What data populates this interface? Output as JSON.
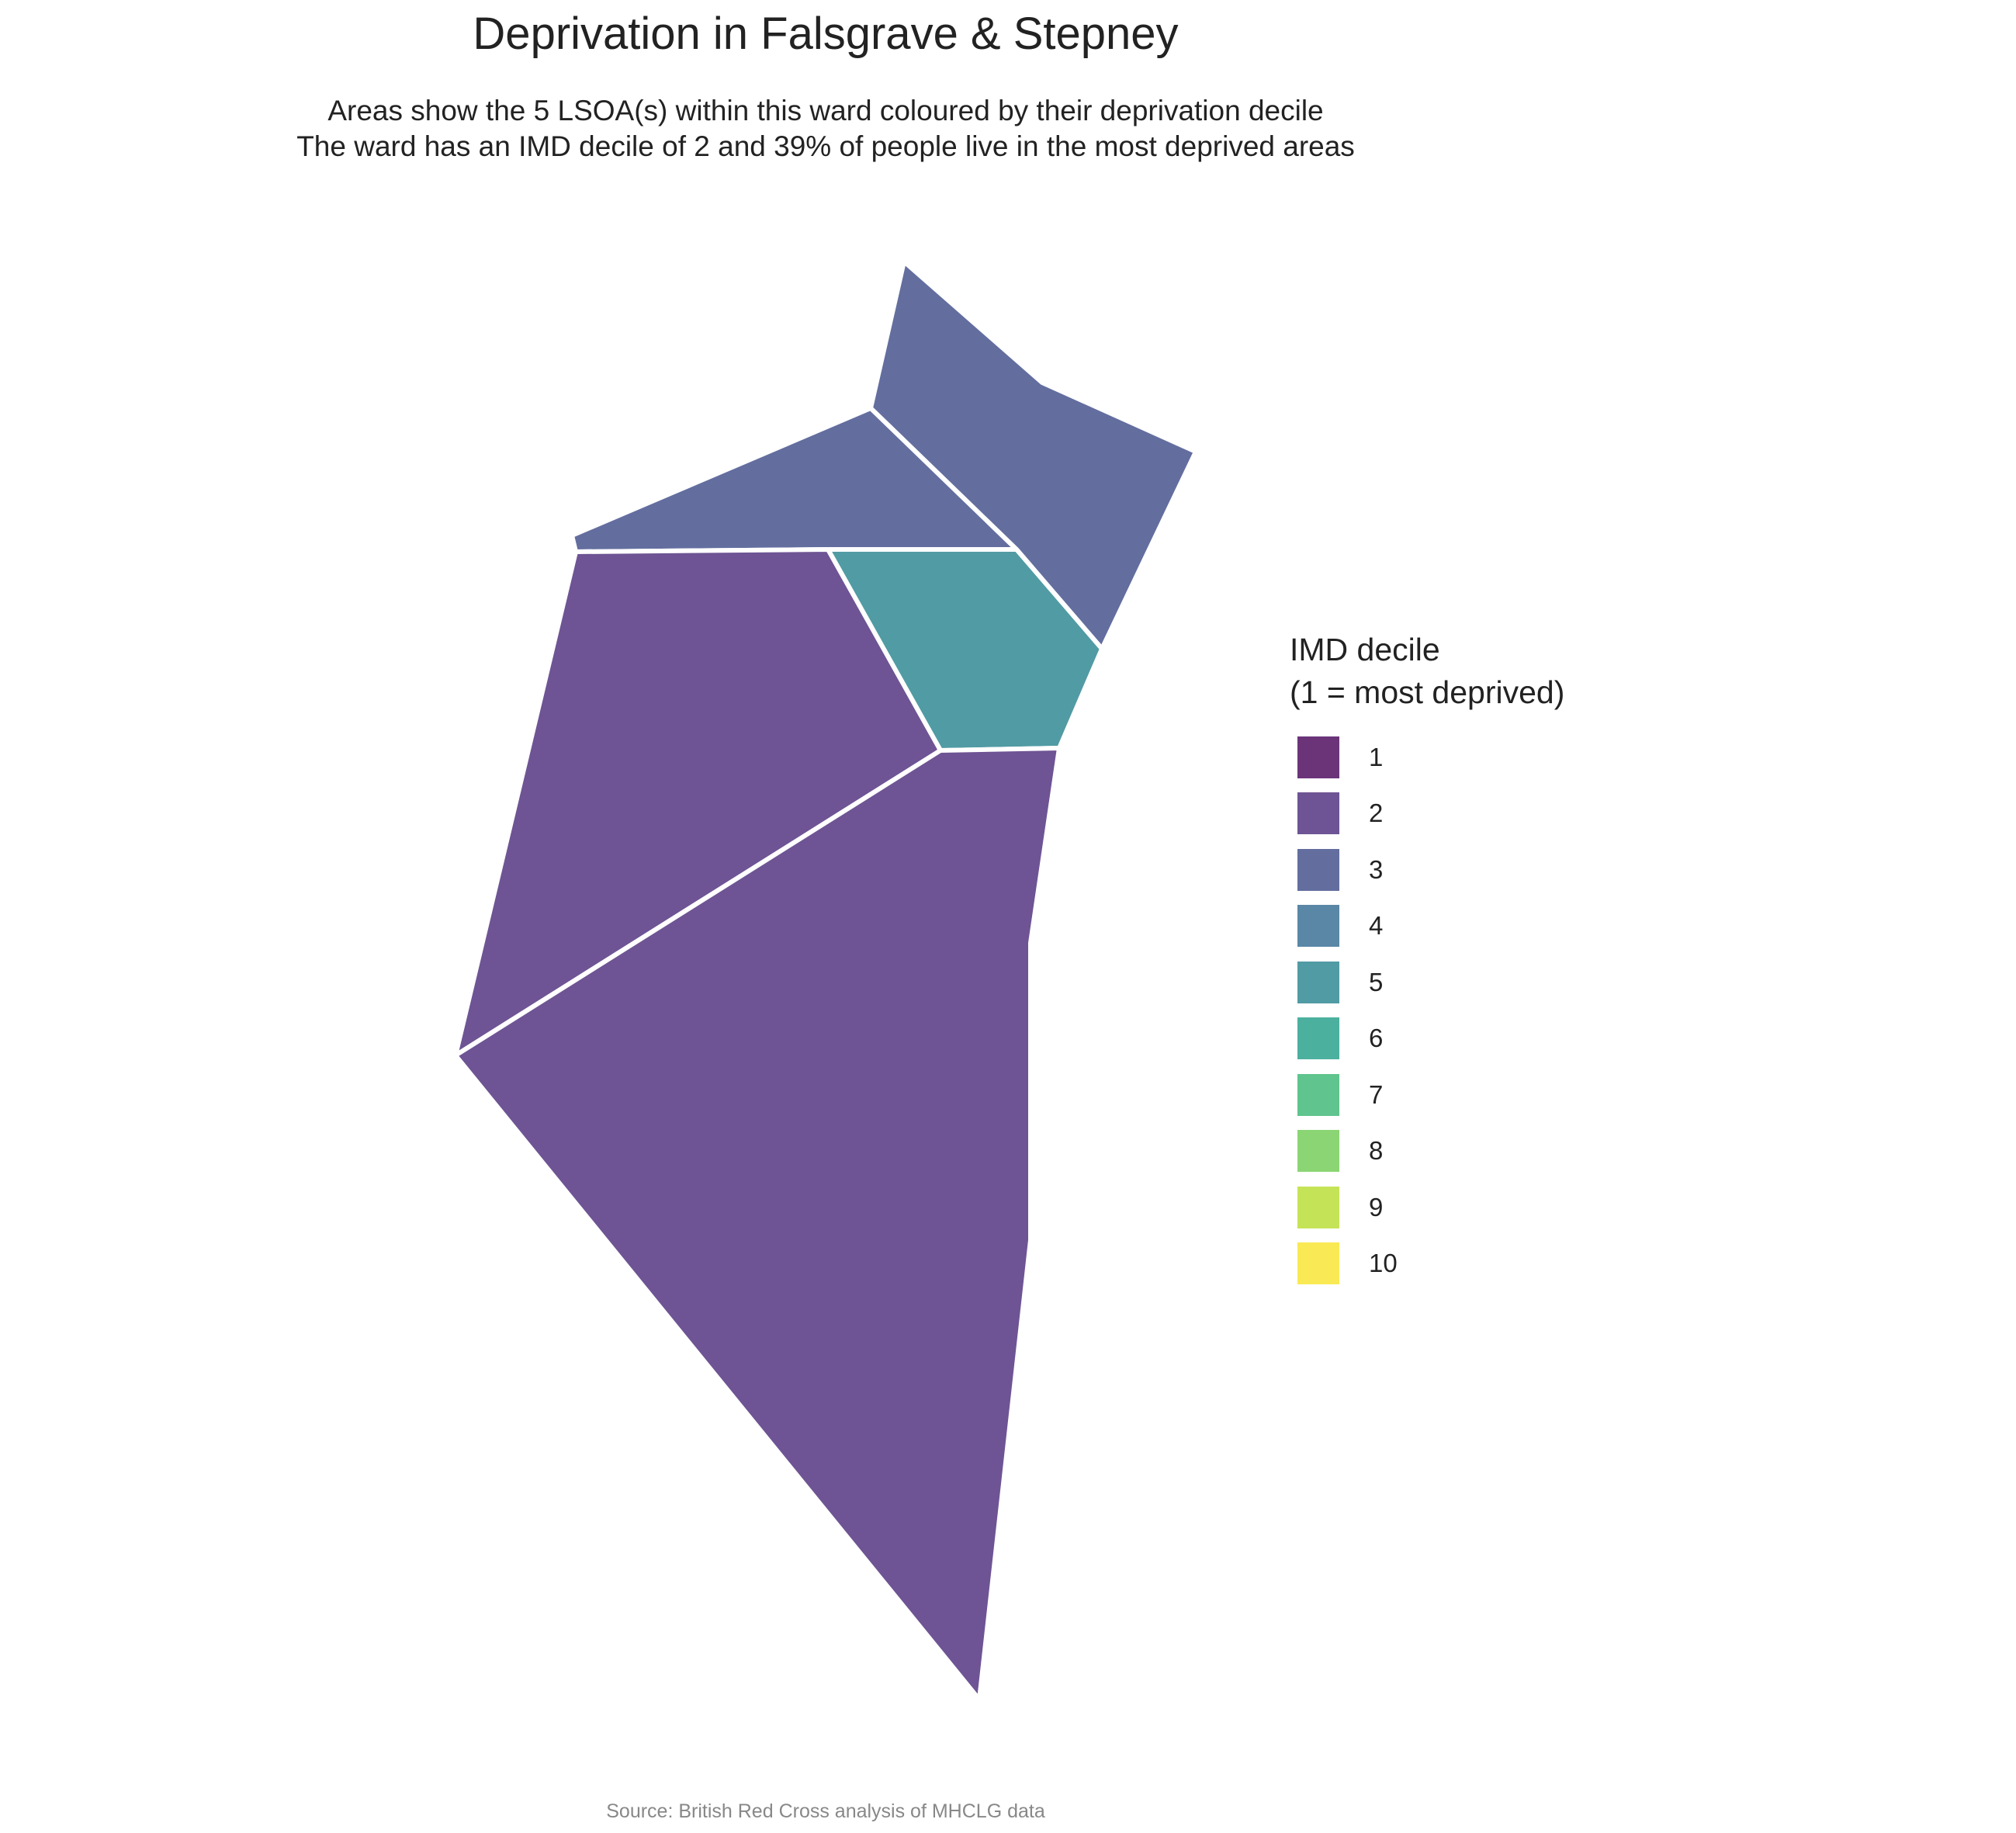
{
  "title": "Deprivation in Falsgrave & Stepney",
  "subtitle_line1": "Areas show the 5 LSOA(s) within this ward coloured by their deprivation decile",
  "subtitle_line2": "The ward has an IMD decile of 2 and 39% of people live in the most deprived areas",
  "legend": {
    "title_line1": "IMD decile",
    "title_line2": "(1 = most deprived)",
    "items": [
      {
        "label": "1",
        "color": "#6b3479"
      },
      {
        "label": "2",
        "color": "#6e5494"
      },
      {
        "label": "3",
        "color": "#636e9f"
      },
      {
        "label": "4",
        "color": "#5a87a6"
      },
      {
        "label": "5",
        "color": "#519ba4"
      },
      {
        "label": "6",
        "color": "#4cb09f"
      },
      {
        "label": "7",
        "color": "#5fc48d"
      },
      {
        "label": "8",
        "color": "#8bd574"
      },
      {
        "label": "9",
        "color": "#c5e357"
      },
      {
        "label": "10",
        "color": "#f9e955"
      }
    ]
  },
  "areas": [
    {
      "decile": 3,
      "color": "#636e9f"
    },
    {
      "decile": 3,
      "color": "#636e9f"
    },
    {
      "decile": 5,
      "color": "#519ba4"
    },
    {
      "decile": 2,
      "color": "#6e5494"
    },
    {
      "decile": 2,
      "color": "#6e5494"
    }
  ],
  "caption": "Source: British Red Cross analysis of MHCLG data"
}
